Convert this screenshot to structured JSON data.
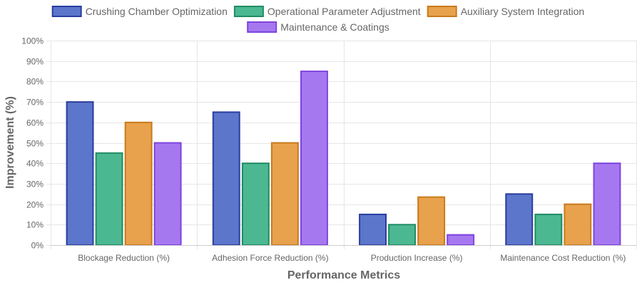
{
  "chart_data": {
    "type": "bar",
    "title": "",
    "xlabel": "Performance Metrics",
    "ylabel": "Improvement (%)",
    "categories": [
      "Blockage Reduction (%)",
      "Adhesion Force Reduction (%)",
      "Production Increase (%)",
      "Maintenance Cost Reduction (%)"
    ],
    "ylim": [
      0,
      100
    ],
    "yticks": [
      0,
      10,
      20,
      30,
      40,
      50,
      60,
      70,
      80,
      90,
      100
    ],
    "ytick_suffix": "%",
    "grid": true,
    "legend_position": "top-center",
    "series": [
      {
        "name": "Crushing Chamber Optimization",
        "values": [
          70,
          65,
          15,
          25
        ],
        "fill": "#5b76cb",
        "stroke": "#2a3d9e"
      },
      {
        "name": "Operational Parameter Adjustment",
        "values": [
          45,
          40,
          10,
          15
        ],
        "fill": "#4cb892",
        "stroke": "#1f8c63"
      },
      {
        "name": "Auxiliary System Integration",
        "values": [
          60,
          50,
          23.5,
          20
        ],
        "fill": "#e8a24d",
        "stroke": "#c97a1c"
      },
      {
        "name": "Maintenance & Coatings",
        "values": [
          50,
          85,
          5,
          40
        ],
        "fill": "#a678f0",
        "stroke": "#7d44de"
      }
    ]
  }
}
